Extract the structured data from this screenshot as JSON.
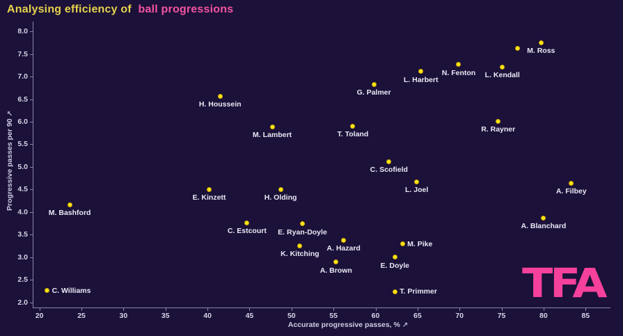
{
  "title": {
    "prefix": "Analysing efficiency of",
    "highlight": "ball progressions"
  },
  "logo": {
    "text": "TFA"
  },
  "colors": {
    "background": "#1b1139",
    "title_yellow": "#e7d24b",
    "title_pink": "#f4549f",
    "marker": "#ffe515",
    "point_label": "#eae8f4",
    "axis": "#8a88a6",
    "tick_label": "#d6d4e6",
    "logo_pink": "#f5419b"
  },
  "axis": {
    "x_arrow": "↗",
    "y_arrow": "↗"
  },
  "chart_data": {
    "type": "scatter",
    "title": "Analysing efficiency of ball progressions",
    "xlabel": "Accurate progressive passes, %",
    "ylabel": "Progressive passes per 90",
    "xlim": [
      19,
      87.5
    ],
    "ylim": [
      1.95,
      8.15
    ],
    "x_ticks": [
      20,
      25,
      30,
      35,
      40,
      45,
      50,
      55,
      60,
      65,
      70,
      75,
      80,
      85
    ],
    "y_ticks": [
      2.0,
      2.5,
      3.0,
      3.5,
      4.0,
      4.5,
      5.0,
      5.5,
      6.0,
      6.5,
      7.0,
      7.5,
      8.0
    ],
    "grid": false,
    "legend_position": "none",
    "marker_color": "#ffe515",
    "points": [
      {
        "name": "M. Ross",
        "x": 79.7,
        "y": 7.75,
        "label_pos": "below"
      },
      {
        "name": "",
        "x": 76.9,
        "y": 7.62,
        "label_pos": "none"
      },
      {
        "name": "N. Fenton",
        "x": 69.9,
        "y": 7.27,
        "label_pos": "below"
      },
      {
        "name": "L. Kendall",
        "x": 75.1,
        "y": 7.21,
        "label_pos": "below"
      },
      {
        "name": "L. Harbert",
        "x": 65.4,
        "y": 7.11,
        "label_pos": "below"
      },
      {
        "name": "G. Palmer",
        "x": 59.8,
        "y": 6.83,
        "label_pos": "below"
      },
      {
        "name": "H. Houssein",
        "x": 41.5,
        "y": 6.57,
        "label_pos": "below"
      },
      {
        "name": "R. Rayner",
        "x": 74.6,
        "y": 6.01,
        "label_pos": "below"
      },
      {
        "name": "T. Toland",
        "x": 57.3,
        "y": 5.9,
        "label_pos": "below"
      },
      {
        "name": "M. Lambert",
        "x": 47.7,
        "y": 5.89,
        "label_pos": "below"
      },
      {
        "name": "C. Scofield",
        "x": 61.6,
        "y": 5.12,
        "label_pos": "below"
      },
      {
        "name": "L. Joel",
        "x": 64.9,
        "y": 4.67,
        "label_pos": "below"
      },
      {
        "name": "A. Filbey",
        "x": 83.3,
        "y": 4.64,
        "label_pos": "below"
      },
      {
        "name": "E. Kinzett",
        "x": 40.2,
        "y": 4.5,
        "label_pos": "below"
      },
      {
        "name": "H. Olding",
        "x": 48.7,
        "y": 4.5,
        "label_pos": "below"
      },
      {
        "name": "M. Bashford",
        "x": 23.6,
        "y": 4.16,
        "label_pos": "below"
      },
      {
        "name": "A. Blanchard",
        "x": 80.0,
        "y": 3.87,
        "label_pos": "below"
      },
      {
        "name": "C. Estcourt",
        "x": 44.7,
        "y": 3.76,
        "label_pos": "below"
      },
      {
        "name": "E. Ryan-Doyle",
        "x": 51.3,
        "y": 3.74,
        "label_pos": "below"
      },
      {
        "name": "A. Hazard",
        "x": 56.2,
        "y": 3.38,
        "label_pos": "below"
      },
      {
        "name": "M. Pike",
        "x": 63.2,
        "y": 3.29,
        "label_pos": "right"
      },
      {
        "name": "K. Kitching",
        "x": 51.0,
        "y": 3.25,
        "label_pos": "below"
      },
      {
        "name": "E. Doyle",
        "x": 62.3,
        "y": 3.0,
        "label_pos": "below"
      },
      {
        "name": "A. Brown",
        "x": 55.3,
        "y": 2.89,
        "label_pos": "below"
      },
      {
        "name": "C. Williams",
        "x": 20.9,
        "y": 2.26,
        "label_pos": "right"
      },
      {
        "name": "T. Primmer",
        "x": 62.3,
        "y": 2.24,
        "label_pos": "right"
      }
    ]
  }
}
